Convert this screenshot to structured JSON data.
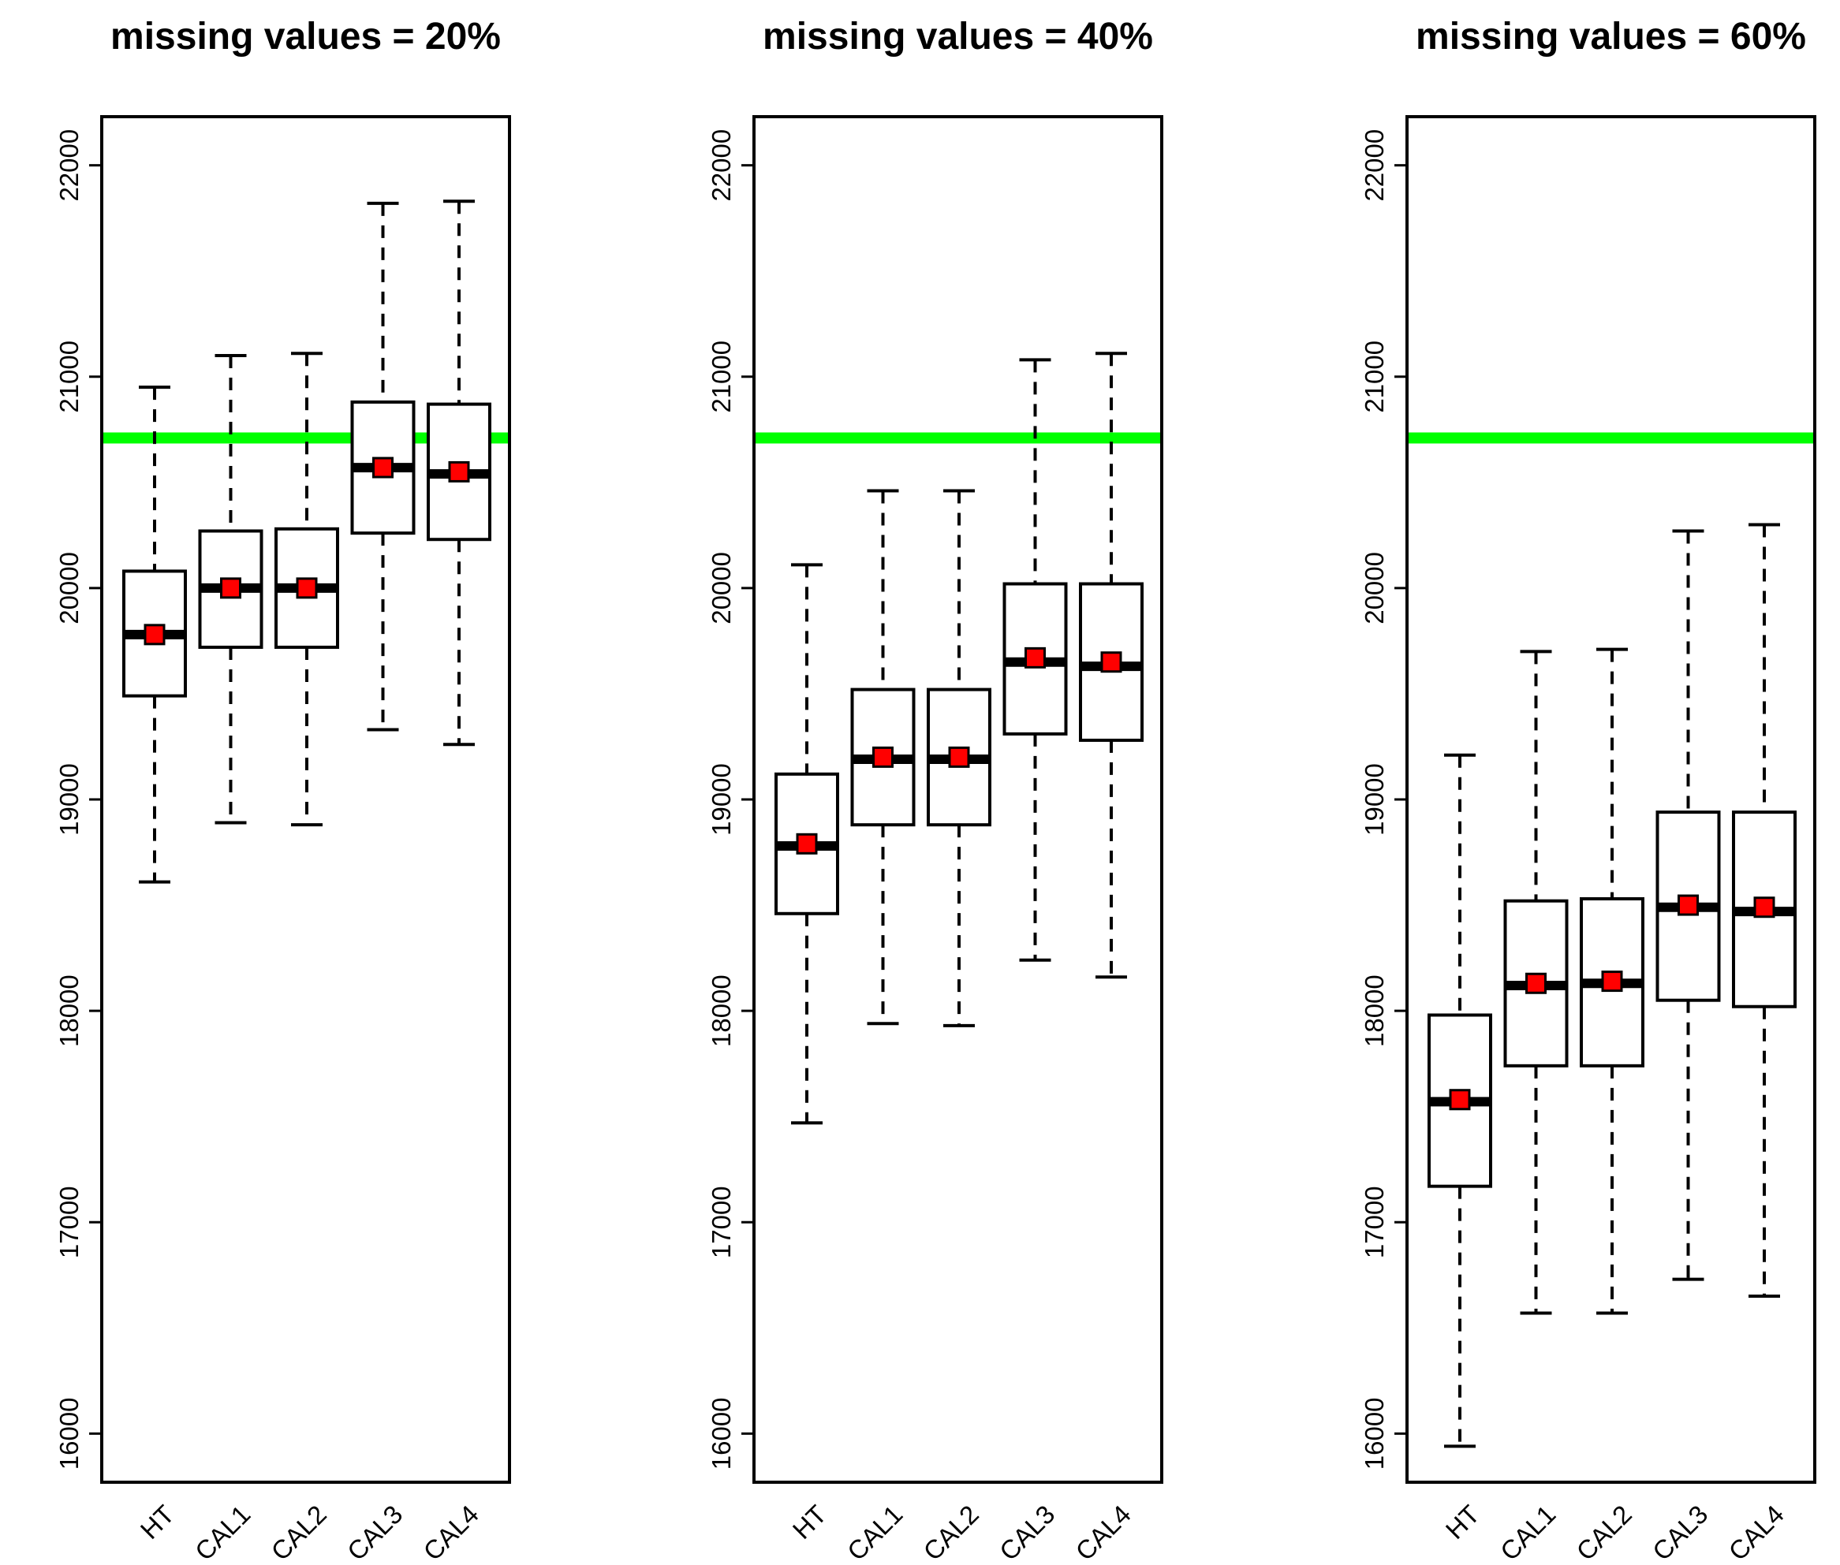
{
  "colors": {
    "reference_line": "#00ff00",
    "mean_marker": "#ff0000",
    "box_stroke": "#000000",
    "background": "#ffffff"
  },
  "chart_data": [
    {
      "type": "boxplot",
      "title": "missing values = 20%",
      "categories": [
        "HT",
        "CAL1",
        "CAL2",
        "CAL3",
        "CAL4"
      ],
      "y_ticks": [
        "16000",
        "17000",
        "18000",
        "19000",
        "20000",
        "21000",
        "22000"
      ],
      "ylim": [
        15770,
        22230
      ],
      "reference_value": 20710,
      "boxes": [
        {
          "name": "HT",
          "whisker_low": 18610,
          "q1": 19490,
          "median": 19780,
          "q3": 20080,
          "whisker_high": 20950,
          "mean": 19780
        },
        {
          "name": "CAL1",
          "whisker_low": 18890,
          "q1": 19720,
          "median": 20000,
          "q3": 20270,
          "whisker_high": 21100,
          "mean": 20000
        },
        {
          "name": "CAL2",
          "whisker_low": 18880,
          "q1": 19720,
          "median": 20000,
          "q3": 20280,
          "whisker_high": 21110,
          "mean": 20000
        },
        {
          "name": "CAL3",
          "whisker_low": 19330,
          "q1": 20260,
          "median": 20570,
          "q3": 20880,
          "whisker_high": 21820,
          "mean": 20570
        },
        {
          "name": "CAL4",
          "whisker_low": 19260,
          "q1": 20230,
          "median": 20540,
          "q3": 20870,
          "whisker_high": 21830,
          "mean": 20550
        }
      ]
    },
    {
      "type": "boxplot",
      "title": "missing values = 40%",
      "categories": [
        "HT",
        "CAL1",
        "CAL2",
        "CAL3",
        "CAL4"
      ],
      "y_ticks": [
        "16000",
        "17000",
        "18000",
        "19000",
        "20000",
        "21000",
        "22000"
      ],
      "ylim": [
        15770,
        22230
      ],
      "reference_value": 20710,
      "boxes": [
        {
          "name": "HT",
          "whisker_low": 17470,
          "q1": 18460,
          "median": 18780,
          "q3": 19120,
          "whisker_high": 20110,
          "mean": 18790
        },
        {
          "name": "CAL1",
          "whisker_low": 17940,
          "q1": 18880,
          "median": 19190,
          "q3": 19520,
          "whisker_high": 20460,
          "mean": 19200
        },
        {
          "name": "CAL2",
          "whisker_low": 17930,
          "q1": 18880,
          "median": 19190,
          "q3": 19520,
          "whisker_high": 20460,
          "mean": 19200
        },
        {
          "name": "CAL3",
          "whisker_low": 18240,
          "q1": 19310,
          "median": 19650,
          "q3": 20020,
          "whisker_high": 21080,
          "mean": 19670
        },
        {
          "name": "CAL4",
          "whisker_low": 18160,
          "q1": 19280,
          "median": 19630,
          "q3": 20020,
          "whisker_high": 21110,
          "mean": 19650
        }
      ]
    },
    {
      "type": "boxplot",
      "title": "missing values = 60%",
      "categories": [
        "HT",
        "CAL1",
        "CAL2",
        "CAL3",
        "CAL4"
      ],
      "y_ticks": [
        "16000",
        "17000",
        "18000",
        "19000",
        "20000",
        "21000",
        "22000"
      ],
      "ylim": [
        15770,
        22230
      ],
      "reference_value": 20710,
      "boxes": [
        {
          "name": "HT",
          "whisker_low": 15940,
          "q1": 17170,
          "median": 17570,
          "q3": 17980,
          "whisker_high": 19210,
          "mean": 17580
        },
        {
          "name": "CAL1",
          "whisker_low": 16570,
          "q1": 17740,
          "median": 18120,
          "q3": 18520,
          "whisker_high": 19700,
          "mean": 18130
        },
        {
          "name": "CAL2",
          "whisker_low": 16570,
          "q1": 17740,
          "median": 18130,
          "q3": 18530,
          "whisker_high": 19710,
          "mean": 18140
        },
        {
          "name": "CAL3",
          "whisker_low": 16730,
          "q1": 18050,
          "median": 18490,
          "q3": 18940,
          "whisker_high": 20270,
          "mean": 18500
        },
        {
          "name": "CAL4",
          "whisker_low": 16650,
          "q1": 18020,
          "median": 18470,
          "q3": 18940,
          "whisker_high": 20300,
          "mean": 18490
        }
      ]
    }
  ]
}
